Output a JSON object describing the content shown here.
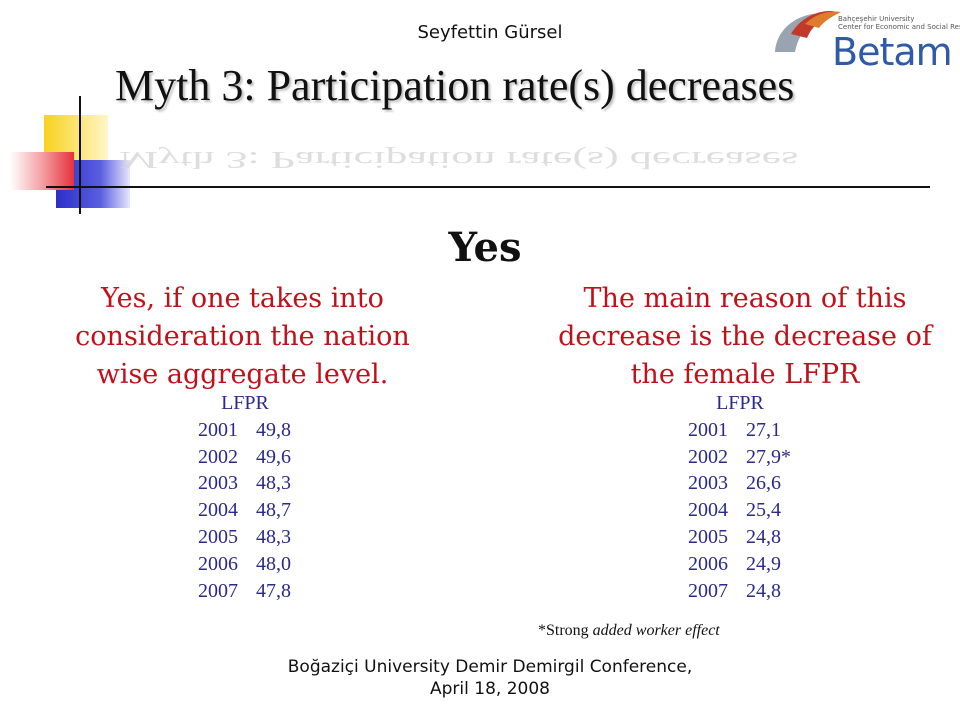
{
  "header": {
    "author": "Seyfettin Gürsel",
    "logo": {
      "name": "Betam",
      "subtitle_line1": "Bahçeşehir University",
      "subtitle_line2": "Center for Economic and Social Research",
      "colors": [
        "#c0392b",
        "#e07b2e",
        "#9aa3b0",
        "#2e5aa8"
      ]
    }
  },
  "slide": {
    "title": "Myth 3: Participation rate(s) decreases",
    "answer": "Yes",
    "left": {
      "heading": "Yes, if one takes into consideration the nation wise aggregate level.",
      "table_title": "LFPR",
      "rows": [
        {
          "year": "2001",
          "value": "49,8"
        },
        {
          "year": "2002",
          "value": "49,6"
        },
        {
          "year": "2003",
          "value": "48,3"
        },
        {
          "year": "2004",
          "value": "48,7"
        },
        {
          "year": "2005",
          "value": "48,3"
        },
        {
          "year": "2006",
          "value": "48,0"
        },
        {
          "year": "2007",
          "value": "47,8"
        }
      ]
    },
    "right": {
      "heading": "The main reason of this decrease is the decrease of the female LFPR",
      "table_title": "LFPR",
      "rows": [
        {
          "year": "2001",
          "value": "27,1"
        },
        {
          "year": "2002",
          "value": "27,9*"
        },
        {
          "year": "2003",
          "value": "26,6"
        },
        {
          "year": "2004",
          "value": "25,4"
        },
        {
          "year": "2005",
          "value": "24,8"
        },
        {
          "year": "2006",
          "value": "24,9"
        },
        {
          "year": "2007",
          "value": "24,8"
        }
      ],
      "note_prefix": "*Strong",
      "note_italic": "added worker effect"
    }
  },
  "footer": {
    "line1": "Boğaziçi University Demir Demirgil Conference,",
    "line2": "April 18, 2008"
  },
  "colors": {
    "accent_red": "#c0101a",
    "table_blue": "#2a2a8a",
    "deco_yellow": "#f7d21c",
    "deco_red": "#e8303a",
    "deco_blue": "#2b2fc7"
  }
}
